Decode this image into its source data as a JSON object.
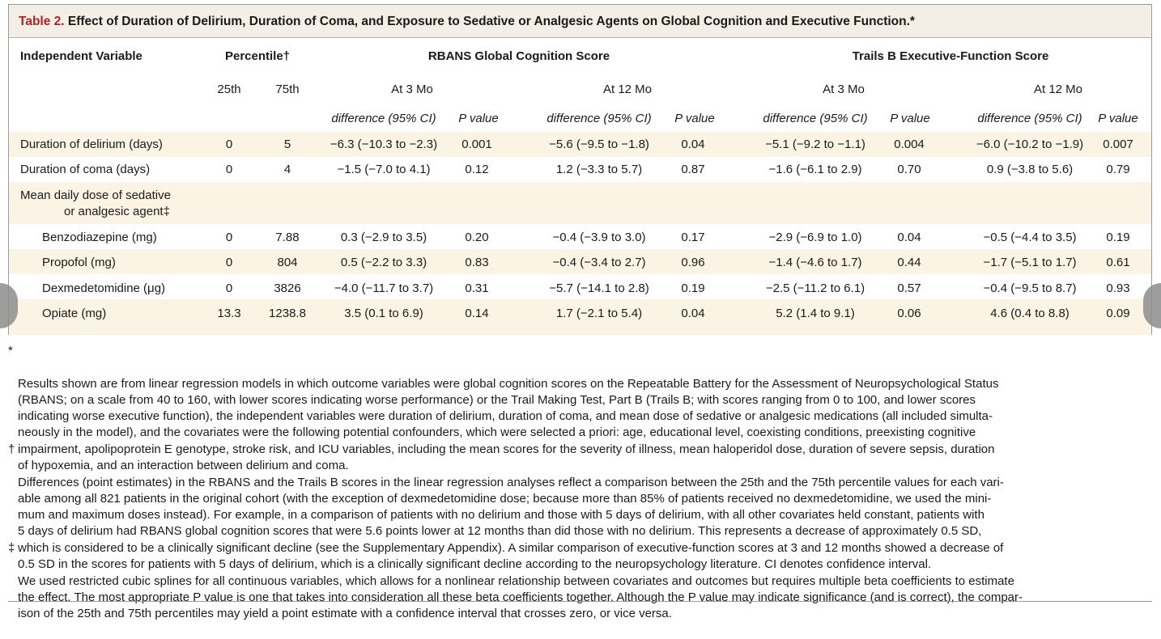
{
  "title": {
    "label": "Table 2.",
    "text": "Effect of Duration of Delirium, Duration of Coma, and Exposure to Sedative or Analgesic Agents on Global Cognition and Executive Function.*"
  },
  "header": {
    "independent_variable": "Independent Variable",
    "percentile": "Percentile†",
    "p25": "25th",
    "p75": "75th",
    "rbans": "RBANS Global Cognition Score",
    "trails": "Trails B Executive-Function Score",
    "at3": "At 3 Mo",
    "at12": "At 12 Mo",
    "difference": "difference (95% CI)",
    "pvalue": "P value"
  },
  "rows": [
    {
      "label": "Duration of delirium (days)",
      "p25": "0",
      "p75": "5",
      "r3d": "−6.3 (−10.3 to −2.3)",
      "r3p": "0.001",
      "r12d": "−5.6 (−9.5 to −1.8)",
      "r12p": "0.04",
      "t3d": "−5.1 (−9.2 to −1.1)",
      "t3p": "0.004",
      "t12d": "−6.0 (−10.2 to −1.9)",
      "t12p": "0.007"
    },
    {
      "label": "Duration of coma (days)",
      "p25": "0",
      "p75": "4",
      "r3d": "−1.5 (−7.0 to 4.1)",
      "r3p": "0.12",
      "r12d": "1.2 (−3.3 to 5.7)",
      "r12p": "0.87",
      "t3d": "−1.6 (−6.1 to 2.9)",
      "t3p": "0.70",
      "t12d": "0.9 (−3.8 to 5.6)",
      "t12p": "0.79"
    },
    {
      "label_line1": "Mean daily dose of sedative",
      "label_line2": "or analgesic agent‡"
    },
    {
      "label": "Benzodiazepine (mg)",
      "p25": "0",
      "p75": "7.88",
      "r3d": "0.3 (−2.9 to 3.5)",
      "r3p": "0.20",
      "r12d": "−0.4 (−3.9 to 3.0)",
      "r12p": "0.17",
      "t3d": "−2.9 (−6.9 to 1.0)",
      "t3p": "0.04",
      "t12d": "−0.5 (−4.4 to 3.5)",
      "t12p": "0.19"
    },
    {
      "label": "Propofol (mg)",
      "p25": "0",
      "p75": "804",
      "r3d": "0.5 (−2.2 to 3.3)",
      "r3p": "0.83",
      "r12d": "−0.4 (−3.4 to 2.7)",
      "r12p": "0.96",
      "t3d": "−1.4 (−4.6 to 1.7)",
      "t3p": "0.44",
      "t12d": "−1.7 (−5.1 to 1.7)",
      "t12p": "0.61"
    },
    {
      "label": "Dexmedetomidine (μg)",
      "p25": "0",
      "p75": "3826",
      "r3d": "−4.0 (−11.7 to 3.7)",
      "r3p": "0.31",
      "r12d": "−5.7 (−14.1 to 2.8)",
      "r12p": "0.19",
      "t3d": "−2.5 (−11.2 to 6.1)",
      "t3p": "0.57",
      "t12d": "−0.4 (−9.5 to 8.7)",
      "t12p": "0.93"
    },
    {
      "label": "Opiate (mg)",
      "p25": "13.3",
      "p75": "1238.8",
      "r3d": "3.5 (0.1 to 6.9)",
      "r3p": "0.14",
      "r12d": "1.7 (−2.1 to 5.4)",
      "r12p": "0.04",
      "t3d": "5.2 (1.4 to 9.1)",
      "t3p": "0.06",
      "t12d": "4.6 (0.4 to 8.8)",
      "t12p": "0.09"
    }
  ],
  "footnotes": [
    {
      "symbol": "*",
      "text": "Results shown are from linear regression models in which outcome variables were global cognition scores on the Repeatable Battery for the Assessment of Neuropsychological Status\n(RBANS; on a scale from 40 to 160, with lower scores indicating worse performance) or the Trail Making Test, Part B (Trails B; with scores ranging from 0 to 100, and lower scores\nindicating worse executive function), the independent variables were duration of delirium, duration of coma, and mean dose of sedative or analgesic medications (all included simulta-\nneously in the model), and the covariates were the following potential confounders, which were selected a priori: age, educational level, coexisting conditions, preexisting cognitive\nimpairment, apolipoprotein E genotype, stroke risk, and ICU variables, including the mean scores for the severity of illness, mean haloperidol dose, duration of severe sepsis, duration\nof hypoxemia, and an interaction between delirium and coma."
    },
    {
      "symbol": "†",
      "text": "Differences (point estimates) in the RBANS and the Trails B scores in the linear regression analyses reflect a comparison between the 25th and the 75th percentile values for each vari-\nable among all 821 patients in the original cohort (with the exception of dexmedetomidine dose; because more than 85% of patients received no dexmedetomidine, we used the mini-\nmum and maximum doses instead). For example, in a comparison of patients with no delirium and those with 5 days of delirium, with all other covariates held constant, patients with\n5 days of delirium had RBANS global cognition scores that were 5.6 points lower at 12 months than did those with no delirium. This represents a decrease of approximately 0.5 SD,\nwhich is considered to be a clinically significant decline (see the Supplementary Appendix). A similar comparison of executive-function scores at 3 and 12 months showed a decrease of\n0.5 SD in the scores for patients with 5 days of delirium, which is a clinically significant decline according to the neuropsychology literature. CI denotes confidence interval."
    },
    {
      "symbol": "‡",
      "text": "We used restricted cubic splines for all continuous variables, which allows for a nonlinear relationship between covariates and outcomes but requires multiple beta coefficients to estimate\nthe effect. The most appropriate P value is one that takes into consideration all these beta coefficients together. Although the P value may indicate significance (and is correct), the compar-\nison of the 25th and 75th percentiles may yield a point estimate with a confidence interval that crosses zero, or vice versa."
    }
  ],
  "colors": {
    "title_label": "#b22222",
    "title_bg": "#f3eee6",
    "stripe": "#fbf3e3",
    "text": "#1a1a1a"
  }
}
